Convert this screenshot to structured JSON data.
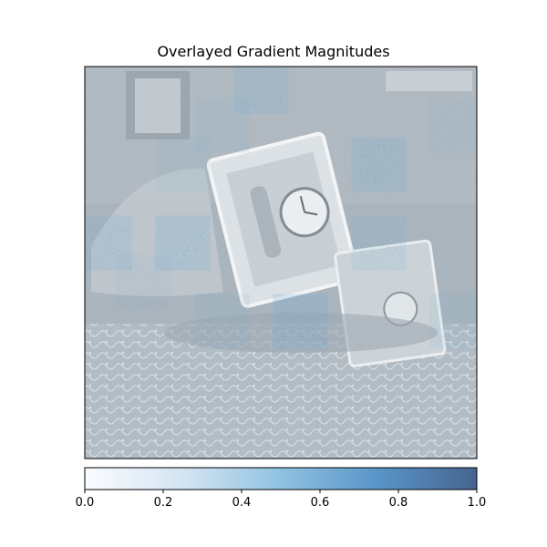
{
  "chart_data": {
    "type": "heatmap",
    "title": "Overlayed Gradient Magnitudes",
    "colorbar": {
      "ticks": [
        "0.0",
        "0.2",
        "0.4",
        "0.6",
        "0.8",
        "1.0"
      ],
      "range": [
        0.0,
        1.0
      ],
      "colormap": "Blues",
      "orientation": "horizontal"
    },
    "axes_visible": false,
    "background_image": "grayscale photo of a desk clock and small objects on a lace cloth",
    "colors": {
      "low": "#f7fbff",
      "mid": "#6baed6",
      "high": "#08306b",
      "photo_tint": "#a9b4bd"
    },
    "hotspots": [
      {
        "row": 0,
        "col": 4,
        "magnitude": 0.75
      },
      {
        "row": 2,
        "col": 7,
        "magnitude": 0.85
      },
      {
        "row": 4,
        "col": 0,
        "magnitude": 0.7
      },
      {
        "row": 4,
        "col": 2,
        "magnitude": 0.8
      },
      {
        "row": 4,
        "col": 7,
        "magnitude": 0.55
      },
      {
        "row": 6,
        "col": 5,
        "magnitude": 0.9
      },
      {
        "row": 6,
        "col": 3,
        "magnitude": 0.45
      },
      {
        "row": 6,
        "col": 9,
        "magnitude": 0.4
      },
      {
        "row": 1,
        "col": 3,
        "magnitude": 0.4
      },
      {
        "row": 2,
        "col": 2,
        "magnitude": 0.35
      },
      {
        "row": 5,
        "col": 1,
        "magnitude": 0.3
      },
      {
        "row": 1,
        "col": 9,
        "magnitude": 0.25
      }
    ]
  }
}
